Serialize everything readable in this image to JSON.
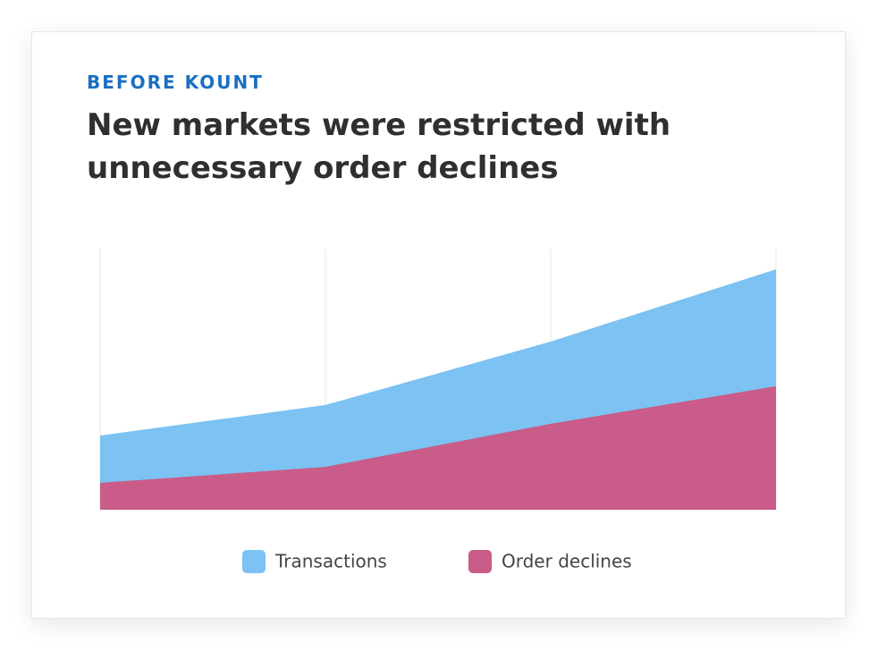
{
  "chart_data": {
    "type": "area",
    "subtitle": "BEFORE KOUNT",
    "title": "New markets were restricted with unnecessary order declines",
    "categories": [
      null,
      null,
      null,
      null
    ],
    "series": [
      {
        "name": "Transactions",
        "color": "#7cc2f3",
        "values": [
          28.4,
          40.1,
          64.4,
          92.1
        ]
      },
      {
        "name": "Order declines",
        "color": "#c95c88",
        "values": [
          10.3,
          16.4,
          32.9,
          47.3
        ]
      }
    ],
    "ylim": [
      0,
      100
    ],
    "grid": true,
    "legend": "bottom"
  }
}
